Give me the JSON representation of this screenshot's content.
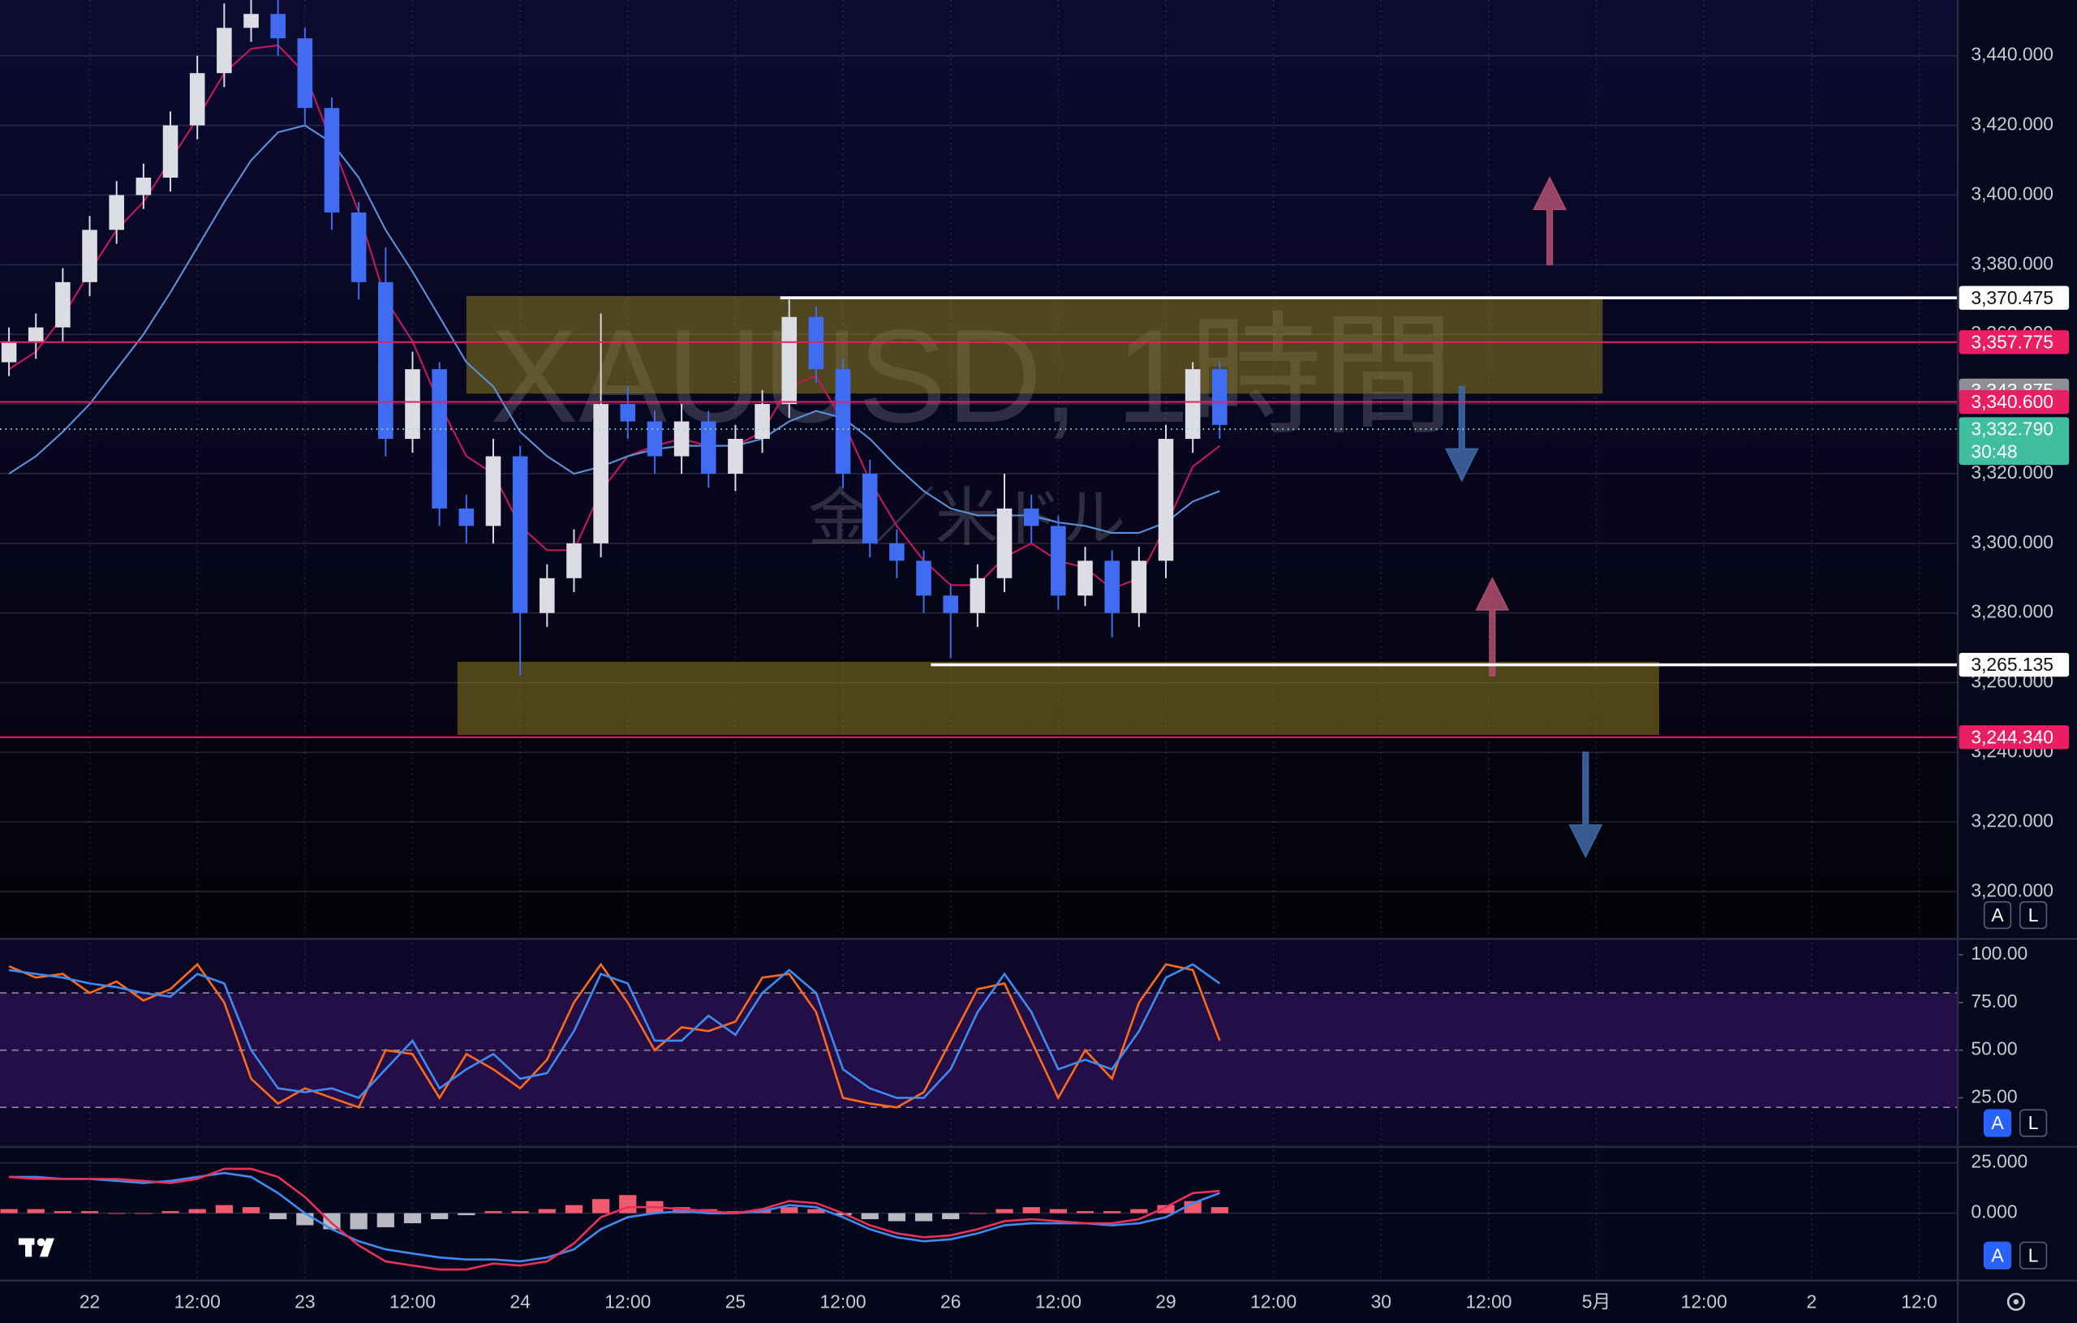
{
  "chart_data": [
    {
      "type": "candlestick",
      "title": "XAUUSD, 1時間",
      "subtitle": "金／米ドル",
      "x": [
        -9,
        -6,
        -3,
        0,
        3,
        6,
        9,
        12,
        15,
        18,
        21,
        24,
        27,
        30,
        33,
        36,
        39,
        42,
        45,
        48,
        51,
        54,
        57,
        60,
        63,
        66,
        69,
        72,
        75,
        78,
        81,
        84,
        87,
        90,
        93,
        96,
        99,
        102,
        105,
        108,
        111,
        114,
        117,
        120,
        123,
        126
      ],
      "open": [
        3352,
        3358,
        3362,
        3375,
        3390,
        3400,
        3405,
        3420,
        3435,
        3448,
        3452,
        3445,
        3425,
        3395,
        3375,
        3330,
        3350,
        3310,
        3305,
        3325,
        3280,
        3290,
        3300,
        3340,
        3335,
        3325,
        3335,
        3320,
        3330,
        3340,
        3365,
        3350,
        3320,
        3300,
        3295,
        3285,
        3280,
        3290,
        3310,
        3305,
        3285,
        3295,
        3280,
        3295,
        3330,
        3350
      ],
      "high": [
        3362,
        3366,
        3379,
        3394,
        3404,
        3409,
        3424,
        3440,
        3455,
        3458,
        3456,
        3448,
        3428,
        3398,
        3385,
        3355,
        3352,
        3314,
        3330,
        3328,
        3294,
        3304,
        3366,
        3345,
        3338,
        3340,
        3338,
        3334,
        3344,
        3370,
        3368,
        3353,
        3324,
        3304,
        3298,
        3288,
        3294,
        3320,
        3314,
        3308,
        3299,
        3298,
        3299,
        3334,
        3352,
        3352
      ],
      "low": [
        3348,
        3353,
        3358,
        3371,
        3386,
        3396,
        3401,
        3416,
        3431,
        3444,
        3440,
        3420,
        3390,
        3370,
        3325,
        3326,
        3305,
        3300,
        3300,
        3262,
        3276,
        3286,
        3296,
        3330,
        3320,
        3320,
        3316,
        3315,
        3326,
        3336,
        3346,
        3316,
        3296,
        3290,
        3280,
        3267,
        3276,
        3286,
        3300,
        3281,
        3282,
        3273,
        3276,
        3290,
        3326,
        3330
      ],
      "close": [
        3358,
        3362,
        3375,
        3390,
        3400,
        3405,
        3420,
        3435,
        3448,
        3452,
        3445,
        3425,
        3395,
        3375,
        3330,
        3350,
        3310,
        3305,
        3325,
        3280,
        3290,
        3300,
        3340,
        3335,
        3325,
        3335,
        3320,
        3330,
        3340,
        3365,
        3350,
        3320,
        3300,
        3295,
        3285,
        3280,
        3290,
        3310,
        3305,
        3285,
        3295,
        3280,
        3295,
        3330,
        3350,
        3334
      ],
      "up_color": "#dcdce4",
      "down_color": "#3f6cf0",
      "ma": [
        {
          "color": "#c2185b",
          "values": [
            3350,
            3355,
            3365,
            3378,
            3390,
            3398,
            3410,
            3422,
            3435,
            3442,
            3443,
            3435,
            3415,
            3395,
            3370,
            3358,
            3340,
            3325,
            3320,
            3305,
            3298,
            3298,
            3315,
            3325,
            3328,
            3330,
            3328,
            3328,
            3332,
            3345,
            3348,
            3335,
            3318,
            3305,
            3295,
            3288,
            3288,
            3296,
            3300,
            3295,
            3293,
            3287,
            3290,
            3305,
            3322,
            3328
          ]
        },
        {
          "color": "#5b8fd6",
          "values": [
            3320,
            3325,
            3332,
            3340,
            3350,
            3360,
            3372,
            3385,
            3398,
            3410,
            3418,
            3420,
            3415,
            3405,
            3390,
            3378,
            3365,
            3352,
            3345,
            3332,
            3325,
            3320,
            3322,
            3325,
            3327,
            3328,
            3328,
            3328,
            3330,
            3335,
            3338,
            3336,
            3330,
            3322,
            3315,
            3310,
            3308,
            3308,
            3308,
            3306,
            3305,
            3303,
            3303,
            3306,
            3312,
            3315
          ]
        }
      ],
      "xlim": [
        -10,
        208.3
      ],
      "xticks": [
        {
          "value": 0,
          "label": "22"
        },
        {
          "value": 12,
          "label": "12:00"
        },
        {
          "value": 24,
          "label": "23"
        },
        {
          "value": 36,
          "label": "12:00"
        },
        {
          "value": 48,
          "label": "24"
        },
        {
          "value": 60,
          "label": "12:00"
        },
        {
          "value": 72,
          "label": "25"
        },
        {
          "value": 84,
          "label": "12:00"
        },
        {
          "value": 96,
          "label": "26"
        },
        {
          "value": 108,
          "label": "12:00"
        },
        {
          "value": 120,
          "label": "29"
        },
        {
          "value": 132,
          "label": "12:00"
        },
        {
          "value": 144,
          "label": "30"
        },
        {
          "value": 156,
          "label": "12:00"
        },
        {
          "value": 168,
          "label": "5月"
        },
        {
          "value": 180,
          "label": "12:00"
        },
        {
          "value": 192,
          "label": "2"
        },
        {
          "value": 204,
          "label": "12:0"
        }
      ],
      "ylim": [
        3186.8,
        3456
      ],
      "yticks": [
        {
          "value": 3200,
          "label": "3,200.000"
        },
        {
          "value": 3220,
          "label": "3,220.000"
        },
        {
          "value": 3240,
          "label": "3,240.000"
        },
        {
          "value": 3260,
          "label": "3,260.000"
        },
        {
          "value": 3280,
          "label": "3,280.000"
        },
        {
          "value": 3300,
          "label": "3,300.000"
        },
        {
          "value": 3320,
          "label": "3,320.000"
        },
        {
          "value": 3340,
          "label": "3,340.000"
        },
        {
          "value": 3360,
          "label": "3,360.000"
        },
        {
          "value": 3380,
          "label": "3,380.000"
        },
        {
          "value": 3400,
          "label": "3,400.000"
        },
        {
          "value": 3420,
          "label": "3,420.000"
        },
        {
          "value": 3440,
          "label": "3,440.000"
        }
      ],
      "grid": true,
      "levels": [
        {
          "value": 3370.475,
          "label": "3,370.475",
          "color": "#ffffff",
          "text_color": "#111111",
          "line": "solid",
          "from": 77
        },
        {
          "value": 3357.775,
          "label": "3,357.775",
          "color": "#e91e63",
          "text_color": "#ffffff",
          "line": "thin",
          "from": -10
        },
        {
          "value": 3343.875,
          "label": "3,343.875",
          "color": "#8e8e96",
          "text_color": "#ffffff",
          "line": "none",
          "from": -10
        },
        {
          "value": 3340.6,
          "label": "3,340.600",
          "color": "#e91e63",
          "text_color": "#ffffff",
          "line": "thin",
          "from": -10
        },
        {
          "value": 3332.79,
          "label": "3,332.790",
          "countdown": "30:48",
          "color": "#3fbf9f",
          "text_color": "#ffffff",
          "line": "dotted",
          "from": -10
        },
        {
          "value": 3265.135,
          "label": "3,265.135",
          "color": "#ffffff",
          "text_color": "#111111",
          "line": "solid",
          "from": 93.8
        },
        {
          "value": 3244.34,
          "label": "3,244.340",
          "color": "#e91e63",
          "text_color": "#ffffff",
          "line": "thin",
          "from": -10
        }
      ],
      "zones": [
        {
          "x": [
            42,
            168.7
          ],
          "y": [
            3343,
            3371
          ],
          "color": "#8a7a1e"
        },
        {
          "x": [
            41,
            175
          ],
          "y": [
            3245,
            3266
          ],
          "color": "#8a7a1e"
        }
      ],
      "arrows": [
        {
          "x": 162.8,
          "y": [
            3380,
            3405
          ],
          "color": "#b0506e"
        },
        {
          "x": 153,
          "y": [
            3345,
            3318
          ],
          "color": "#3f6aa8"
        },
        {
          "x": 156.4,
          "y": [
            3262,
            3290
          ],
          "color": "#b0506e"
        },
        {
          "x": 166.8,
          "y": [
            3240,
            3210
          ],
          "color": "#3f6aa8"
        }
      ],
      "scale_buttons": [
        "A",
        "L"
      ]
    },
    {
      "type": "line",
      "series": [
        {
          "color": "#ff6a1a",
          "values": [
            94,
            88,
            90,
            80,
            86,
            76,
            82,
            95,
            75,
            35,
            22,
            30,
            25,
            20,
            50,
            48,
            25,
            48,
            40,
            30,
            45,
            75,
            95,
            75,
            50,
            62,
            60,
            65,
            88,
            90,
            70,
            25,
            22,
            20,
            28,
            55,
            82,
            85,
            55,
            25,
            50,
            35,
            75,
            95,
            92,
            55
          ]
        },
        {
          "color": "#3d8bf0",
          "values": [
            92,
            90,
            88,
            85,
            83,
            80,
            78,
            90,
            85,
            50,
            30,
            28,
            30,
            25,
            40,
            55,
            30,
            40,
            48,
            35,
            38,
            60,
            90,
            85,
            55,
            55,
            68,
            58,
            80,
            92,
            80,
            40,
            30,
            25,
            25,
            40,
            70,
            90,
            70,
            40,
            45,
            40,
            60,
            88,
            95,
            85
          ]
        }
      ],
      "ylim": [
        0,
        107.6
      ],
      "yticks": [
        {
          "value": 25,
          "label": "25.00"
        },
        {
          "value": 50,
          "label": "50.00"
        },
        {
          "value": 75,
          "label": "75.00"
        },
        {
          "value": 100,
          "label": "100.00"
        }
      ],
      "bands": [
        20,
        80
      ],
      "midline": 50,
      "scale_buttons": [
        "A",
        "L"
      ],
      "active_button": 0
    },
    {
      "type": "line",
      "series": [
        {
          "type": "bar",
          "color": "#f05a6e",
          "negative_color": "#b8b8c2",
          "values": [
            2,
            2,
            1,
            1,
            0,
            0,
            1,
            2,
            4,
            3,
            -3,
            -6,
            -8,
            -8,
            -7,
            -5,
            -3,
            -1,
            1,
            1,
            2,
            4,
            7,
            9,
            6,
            3,
            2,
            1,
            2,
            3,
            2,
            -1,
            -3,
            -4,
            -4,
            -3,
            0,
            2,
            3,
            2,
            1,
            1,
            2,
            4,
            6,
            3
          ]
        },
        {
          "color": "#3d8bf0",
          "values": [
            18,
            18,
            17,
            17,
            16,
            15,
            16,
            18,
            20,
            18,
            10,
            0,
            -8,
            -14,
            -18,
            -20,
            -22,
            -23,
            -23,
            -24,
            -22,
            -18,
            -8,
            -2,
            0,
            1,
            0,
            0,
            1,
            4,
            3,
            -2,
            -8,
            -12,
            -14,
            -13,
            -10,
            -6,
            -5,
            -5,
            -5,
            -6,
            -5,
            -2,
            5,
            10
          ]
        },
        {
          "color": "#e8305a",
          "values": [
            18,
            17,
            17,
            17,
            17,
            16,
            15,
            17,
            22,
            22,
            18,
            8,
            -5,
            -16,
            -24,
            -26,
            -28,
            -28,
            -25,
            -26,
            -24,
            -15,
            -2,
            3,
            3,
            2,
            1,
            0,
            2,
            6,
            5,
            0,
            -6,
            -10,
            -12,
            -11,
            -8,
            -4,
            -3,
            -4,
            -5,
            -5,
            -3,
            3,
            10,
            11
          ]
        }
      ],
      "ylim": [
        -32.2,
        30.3
      ],
      "yticks": [
        {
          "value": 0,
          "label": "0.000"
        },
        {
          "value": 25,
          "label": "25.000"
        }
      ],
      "scale_buttons": [
        "A",
        "L"
      ],
      "active_button": 0
    }
  ]
}
